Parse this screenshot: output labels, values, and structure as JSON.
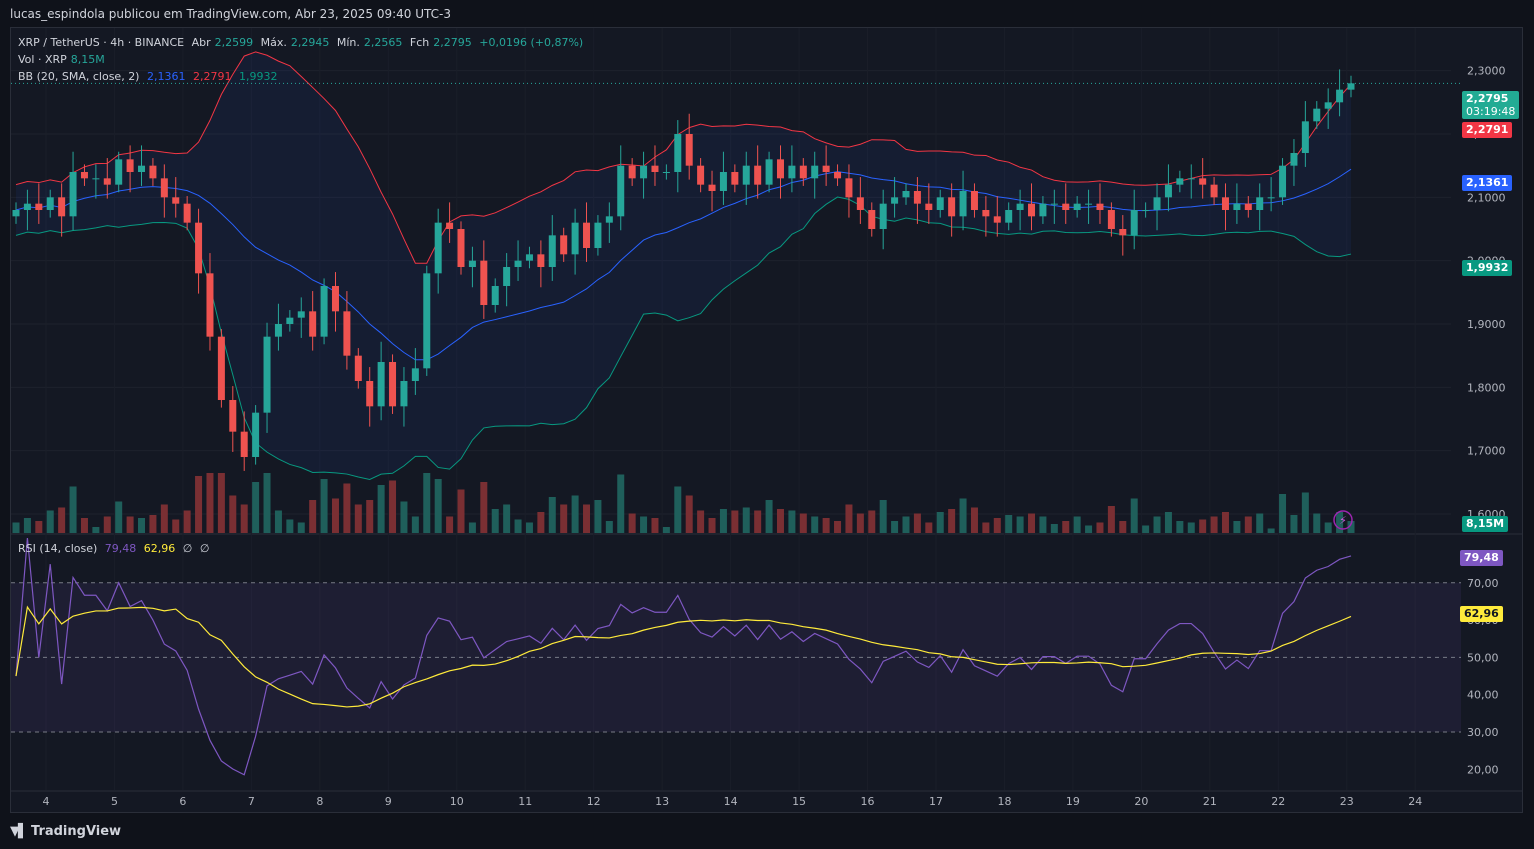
{
  "attribution": "lucas_espindola publicou em TradingView.com, Abr 23, 2025 09:40 UTC-3",
  "legend": {
    "symbol": "XRP / TetherUS · 4h · BINANCE",
    "o_label": "Abr",
    "o": "2,2599",
    "h_label": "Máx.",
    "h": "2,2945",
    "l_label": "Mín.",
    "l": "2,2565",
    "c_label": "Fch",
    "c": "2,2795",
    "change": "+0,0196 (+0,87%)",
    "vol_label": "Vol · XRP",
    "vol": "8,15M",
    "bb_label": "BB (20, SMA, close, 2)",
    "bb_basis": "2,1361",
    "bb_upper": "2,2791",
    "bb_lower": "1,9932",
    "rsi_label": "RSI (14, close)",
    "rsi": "79,48",
    "rsi_ma": "62,96",
    "rsi_x1": "∅",
    "rsi_x2": "∅"
  },
  "price_labels": {
    "last": "2,2795",
    "countdown": "03:19:48",
    "upper": "2,2791",
    "basis": "2,1361",
    "lower": "1,9932",
    "volume": "8,15M",
    "rsi": "79,48",
    "rsi_ma": "62,96"
  },
  "brand": "TradingView",
  "colors": {
    "up": "#26a69a",
    "down": "#ef5350",
    "basis": "#2962ff",
    "upper": "#f23645",
    "lower": "#089981",
    "rsi": "#7e57c2",
    "rsi_ma": "#ffeb3b",
    "volume_up": "#1f5f5b",
    "volume_down": "#7a2f33"
  },
  "chart_data": {
    "type": "candlestick",
    "title": "XRP / TetherUS · 4h · BINANCE",
    "price_axis": {
      "ylim": [
        1.57,
        2.32
      ],
      "ticks": [
        "2,3000",
        "2,2000",
        "2,1000",
        "2,0000",
        "1,9000",
        "1,8000",
        "1,7000",
        "1,6000"
      ]
    },
    "time_axis": {
      "ticks": [
        "4",
        "5",
        "6",
        "7",
        "8",
        "9",
        "10",
        "11",
        "12",
        "13",
        "14",
        "15",
        "16",
        "17",
        "18",
        "19",
        "20",
        "21",
        "22",
        "23",
        "24"
      ]
    },
    "rsi_axis": {
      "ylim": [
        15,
        82
      ],
      "ticks": [
        "70,00",
        "60,00",
        "50,00",
        "40,00",
        "30,00",
        "20,00"
      ],
      "bands": [
        30,
        50,
        70
      ]
    },
    "volume_max": 40,
    "closes": [
      2.08,
      2.09,
      2.08,
      2.1,
      2.07,
      2.14,
      2.13,
      2.13,
      2.12,
      2.16,
      2.14,
      2.15,
      2.13,
      2.1,
      2.09,
      2.06,
      1.98,
      1.88,
      1.78,
      1.73,
      1.69,
      1.76,
      1.88,
      1.9,
      1.91,
      1.92,
      1.88,
      1.96,
      1.92,
      1.85,
      1.81,
      1.77,
      1.84,
      1.77,
      1.81,
      1.83,
      1.98,
      2.06,
      2.05,
      1.99,
      2.0,
      1.93,
      1.96,
      1.99,
      2.0,
      2.01,
      1.99,
      2.04,
      2.01,
      2.06,
      2.02,
      2.06,
      2.07,
      2.15,
      2.13,
      2.15,
      2.14,
      2.14,
      2.2,
      2.15,
      2.12,
      2.11,
      2.14,
      2.12,
      2.15,
      2.12,
      2.16,
      2.13,
      2.15,
      2.13,
      2.15,
      2.14,
      2.13,
      2.1,
      2.08,
      2.05,
      2.09,
      2.1,
      2.11,
      2.09,
      2.08,
      2.1,
      2.07,
      2.11,
      2.08,
      2.07,
      2.06,
      2.08,
      2.09,
      2.07,
      2.09,
      2.09,
      2.08,
      2.09,
      2.09,
      2.08,
      2.05,
      2.04,
      2.08,
      2.08,
      2.1,
      2.12,
      2.13,
      2.13,
      2.12,
      2.1,
      2.08,
      2.09,
      2.08,
      2.1,
      2.1,
      2.15,
      2.17,
      2.22,
      2.24,
      2.25,
      2.27,
      2.28
    ],
    "rsi_max_length": 110
  }
}
